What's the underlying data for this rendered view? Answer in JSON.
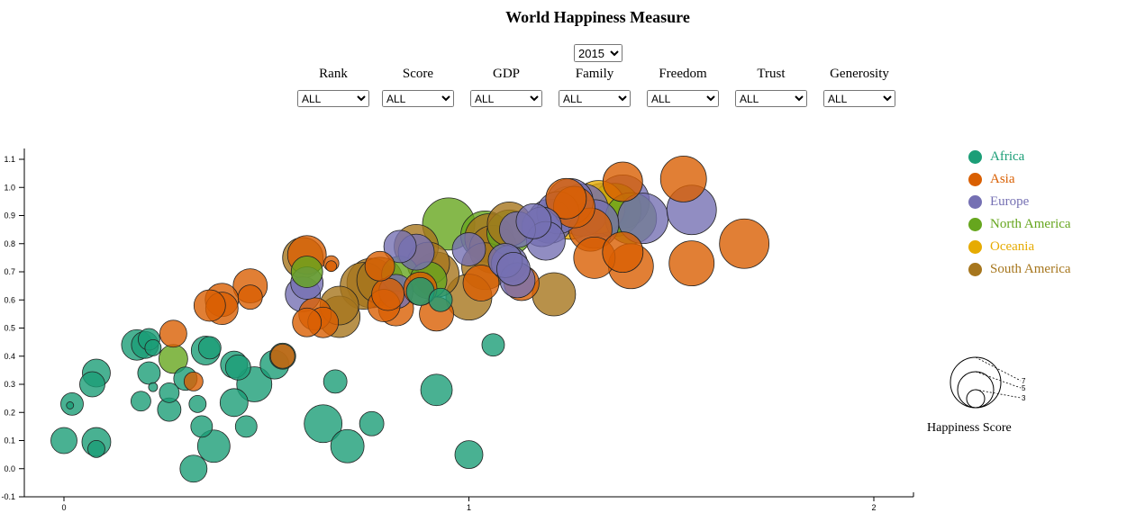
{
  "title": "World Happiness Measure",
  "year_select": {
    "value": "2015",
    "options": [
      "2015"
    ]
  },
  "filters": [
    {
      "label": "Rank",
      "value": "ALL"
    },
    {
      "label": "Score",
      "value": "ALL"
    },
    {
      "label": "GDP",
      "value": "ALL"
    },
    {
      "label": "Family",
      "value": "ALL"
    },
    {
      "label": "Freedom",
      "value": "ALL"
    },
    {
      "label": "Trust",
      "value": "ALL"
    },
    {
      "label": "Generosity",
      "value": "ALL"
    }
  ],
  "legend": [
    {
      "name": "Africa",
      "color": "#1b9e77"
    },
    {
      "name": "Asia",
      "color": "#d95f02"
    },
    {
      "name": "Europe",
      "color": "#7570b3"
    },
    {
      "name": "North America",
      "color": "#66a61e"
    },
    {
      "name": "Oceania",
      "color": "#e6ab02"
    },
    {
      "name": "South America",
      "color": "#a6761d"
    }
  ],
  "size_legend": {
    "title": "Happiness Score",
    "values": [
      "7",
      "5",
      "3"
    ]
  },
  "chart_data": {
    "type": "scatter",
    "title": "World Happiness Measure",
    "xlabel": "",
    "ylabel": "",
    "xlim": [
      0,
      2
    ],
    "ylim": [
      -0.1,
      1.1
    ],
    "x_ticks": [
      "0",
      "1",
      "2"
    ],
    "y_ticks": [
      "-0.1",
      "0.0",
      "0.1",
      "0.2",
      "0.3",
      "0.4",
      "0.5",
      "0.6",
      "0.7",
      "0.8",
      "0.9",
      "1.0",
      "1.1"
    ],
    "size_encoding": "Happiness Score",
    "series": [
      {
        "name": "Africa",
        "points": [
          [
            0.08,
            0.34,
            4.5
          ],
          [
            0.07,
            0.3,
            4.2
          ],
          [
            0.02,
            0.23,
            3.9
          ],
          [
            0.015,
            0.225,
            2.2
          ],
          [
            0.0,
            0.1,
            4.3
          ],
          [
            0.08,
            0.095,
            4.6
          ],
          [
            0.08,
            0.07,
            3.3
          ],
          [
            0.18,
            0.44,
            4.8
          ],
          [
            0.2,
            0.44,
            4.4
          ],
          [
            0.21,
            0.46,
            3.8
          ],
          [
            0.22,
            0.43,
            3.2
          ],
          [
            0.21,
            0.34,
            3.9
          ],
          [
            0.22,
            0.29,
            2.4
          ],
          [
            0.19,
            0.24,
            3.6
          ],
          [
            0.26,
            0.27,
            3.6
          ],
          [
            0.26,
            0.21,
            4.0
          ],
          [
            0.3,
            0.32,
            4.0
          ],
          [
            0.33,
            0.23,
            3.3
          ],
          [
            0.34,
            0.15,
            3.8
          ],
          [
            0.35,
            0.42,
            4.6
          ],
          [
            0.36,
            0.43,
            3.9
          ],
          [
            0.32,
            0.0,
            4.4
          ],
          [
            0.37,
            0.08,
            5.0
          ],
          [
            0.42,
            0.37,
            4.4
          ],
          [
            0.43,
            0.36,
            4.2
          ],
          [
            0.47,
            0.3,
            5.3
          ],
          [
            0.42,
            0.235,
            4.5
          ],
          [
            0.45,
            0.15,
            3.8
          ],
          [
            0.52,
            0.37,
            4.6
          ],
          [
            0.54,
            0.4,
            4.3
          ],
          [
            0.64,
            0.16,
            5.6
          ],
          [
            0.67,
            0.31,
            4.0
          ],
          [
            0.7,
            0.08,
            5.1
          ],
          [
            0.76,
            0.16,
            4.1
          ],
          [
            0.92,
            0.28,
            4.9
          ],
          [
            1.06,
            0.44,
            3.9
          ],
          [
            1.0,
            0.05,
            4.5
          ],
          [
            0.88,
            0.63,
            4.5
          ],
          [
            0.93,
            0.6,
            4.0
          ]
        ]
      },
      {
        "name": "Asia",
        "points": [
          [
            0.27,
            0.48,
            4.4
          ],
          [
            0.32,
            0.31,
            3.5
          ],
          [
            0.54,
            0.4,
            4.1
          ],
          [
            0.36,
            0.58,
            4.9
          ],
          [
            0.39,
            0.6,
            5.1
          ],
          [
            0.39,
            0.57,
            5.0
          ],
          [
            0.46,
            0.65,
            5.2
          ],
          [
            0.46,
            0.61,
            4.1
          ],
          [
            0.6,
            0.76,
            5.7
          ],
          [
            0.66,
            0.73,
            3.1
          ],
          [
            0.66,
            0.72,
            2.6
          ],
          [
            0.62,
            0.55,
            5.0
          ],
          [
            0.64,
            0.52,
            4.8
          ],
          [
            0.6,
            0.52,
            4.6
          ],
          [
            0.78,
            0.72,
            4.7
          ],
          [
            0.79,
            0.58,
            5.0
          ],
          [
            0.8,
            0.62,
            5.0
          ],
          [
            0.82,
            0.57,
            5.3
          ],
          [
            0.88,
            0.64,
            5.1
          ],
          [
            0.92,
            0.55,
            5.2
          ],
          [
            1.03,
            0.66,
            5.4
          ],
          [
            1.13,
            0.66,
            5.3
          ],
          [
            1.24,
            0.96,
            5.9
          ],
          [
            1.38,
            1.02,
            5.8
          ],
          [
            1.53,
            1.03,
            6.5
          ],
          [
            1.31,
            0.75,
            6.0
          ],
          [
            1.38,
            0.77,
            5.9
          ],
          [
            1.4,
            0.72,
            6.4
          ],
          [
            1.55,
            0.73,
            6.4
          ],
          [
            1.68,
            0.8,
            6.9
          ],
          [
            1.26,
            0.93,
            6.0
          ],
          [
            1.3,
            0.85,
            6.2
          ]
        ]
      },
      {
        "name": "Europe",
        "points": [
          [
            0.59,
            0.62,
            5.3
          ],
          [
            0.6,
            0.66,
            5.0
          ],
          [
            0.82,
            0.63,
            5.2
          ],
          [
            0.83,
            0.79,
            5.0
          ],
          [
            0.87,
            0.77,
            5.4
          ],
          [
            1.0,
            0.78,
            5.1
          ],
          [
            1.09,
            0.74,
            5.2
          ],
          [
            1.1,
            0.73,
            5.4
          ],
          [
            1.11,
            0.71,
            5.1
          ],
          [
            1.12,
            0.85,
            5.4
          ],
          [
            1.12,
            0.67,
            5.3
          ],
          [
            1.16,
            0.88,
            5.3
          ],
          [
            1.18,
            0.86,
            5.8
          ],
          [
            1.19,
            0.81,
            5.7
          ],
          [
            1.2,
            0.88,
            6.3
          ],
          [
            1.22,
            0.91,
            6.1
          ],
          [
            1.25,
            0.95,
            6.5
          ],
          [
            1.28,
            0.92,
            7.2
          ],
          [
            1.31,
            0.87,
            6.8
          ],
          [
            1.33,
            0.92,
            7.3
          ],
          [
            1.38,
            0.95,
            7.3
          ],
          [
            1.43,
            0.89,
            7.0
          ],
          [
            1.55,
            0.92,
            6.9
          ]
        ]
      },
      {
        "name": "North America",
        "points": [
          [
            0.27,
            0.39,
            4.6
          ],
          [
            0.6,
            0.7,
            4.9
          ],
          [
            0.83,
            0.69,
            5.5
          ],
          [
            0.9,
            0.67,
            5.5
          ],
          [
            0.95,
            0.87,
            7.2
          ],
          [
            1.04,
            0.83,
            6.8
          ],
          [
            1.1,
            0.84,
            6.4
          ],
          [
            1.4,
            0.89,
            7.1
          ],
          [
            1.36,
            0.92,
            7.3
          ]
        ]
      },
      {
        "name": "Oceania",
        "points": [
          [
            1.25,
            0.91,
            7.3
          ],
          [
            1.32,
            0.93,
            7.3
          ]
        ]
      },
      {
        "name": "South America",
        "points": [
          [
            0.59,
            0.75,
            5.9
          ],
          [
            0.68,
            0.58,
            5.7
          ],
          [
            0.68,
            0.54,
            6.0
          ],
          [
            0.74,
            0.65,
            6.6
          ],
          [
            0.76,
            0.66,
            6.9
          ],
          [
            0.78,
            0.67,
            6.5
          ],
          [
            0.87,
            0.79,
            6.3
          ],
          [
            0.9,
            0.73,
            6.1
          ],
          [
            0.92,
            0.69,
            6.4
          ],
          [
            1.0,
            0.61,
            6.5
          ],
          [
            1.04,
            0.72,
            6.6
          ],
          [
            1.05,
            0.82,
            6.8
          ],
          [
            1.06,
            0.78,
            6.7
          ],
          [
            1.1,
            0.87,
            6.3
          ],
          [
            1.21,
            0.62,
            6.2
          ]
        ]
      }
    ]
  }
}
